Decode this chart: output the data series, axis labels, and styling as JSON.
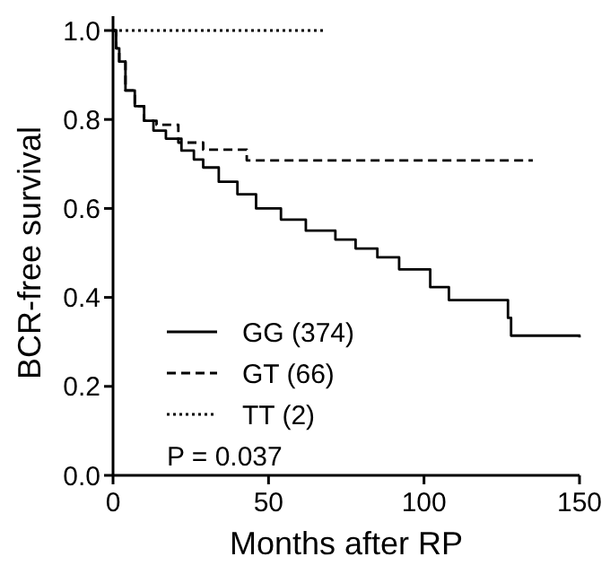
{
  "chart_data": {
    "type": "step",
    "xlabel": "Months after RP",
    "ylabel": "BCR-free survival",
    "xlim": [
      0,
      150
    ],
    "ylim": [
      0,
      1.0
    ],
    "xticks": [
      0,
      50,
      100,
      150
    ],
    "yticks": [
      {
        "value": 0,
        "label": "0.0"
      },
      {
        "value": 0.2,
        "label": "0.2"
      },
      {
        "value": 0.4,
        "label": "0.4"
      },
      {
        "value": 0.6,
        "label": "0.6"
      },
      {
        "value": 0.8,
        "label": "0.8"
      },
      {
        "value": 1.0,
        "label": "1.0"
      }
    ],
    "grid": false,
    "legend": "bottom left",
    "annotations": [
      "P = 0.037"
    ],
    "series": [
      {
        "name": "GG (374)",
        "color": "#000000",
        "line_style": "solid",
        "x": [
          0,
          1,
          2,
          4,
          7,
          10,
          13,
          17,
          22,
          26,
          29,
          34,
          40,
          46,
          54,
          62,
          71.5,
          78,
          85,
          92,
          97.5,
          102,
          108,
          121,
          127,
          128,
          150
        ],
        "values": [
          1.0,
          0.96,
          0.93,
          0.865,
          0.83,
          0.797,
          0.775,
          0.757,
          0.73,
          0.71,
          0.692,
          0.66,
          0.632,
          0.6,
          0.575,
          0.55,
          0.53,
          0.51,
          0.49,
          0.463,
          0.463,
          0.423,
          0.394,
          0.394,
          0.354,
          0.314,
          0.31
        ]
      },
      {
        "name": "GT (66)",
        "color": "#000000",
        "line_style": "dashed",
        "x": [
          0,
          1,
          2,
          4,
          7,
          10,
          14,
          21,
          29,
          43,
          135
        ],
        "values": [
          1.0,
          0.96,
          0.93,
          0.865,
          0.83,
          0.797,
          0.788,
          0.748,
          0.732,
          0.708,
          0.708
        ]
      },
      {
        "name": "TT (2)",
        "color": "#000000",
        "line_style": "dotted",
        "x": [
          0,
          68.5
        ],
        "values": [
          1.0,
          1.0
        ]
      }
    ]
  }
}
